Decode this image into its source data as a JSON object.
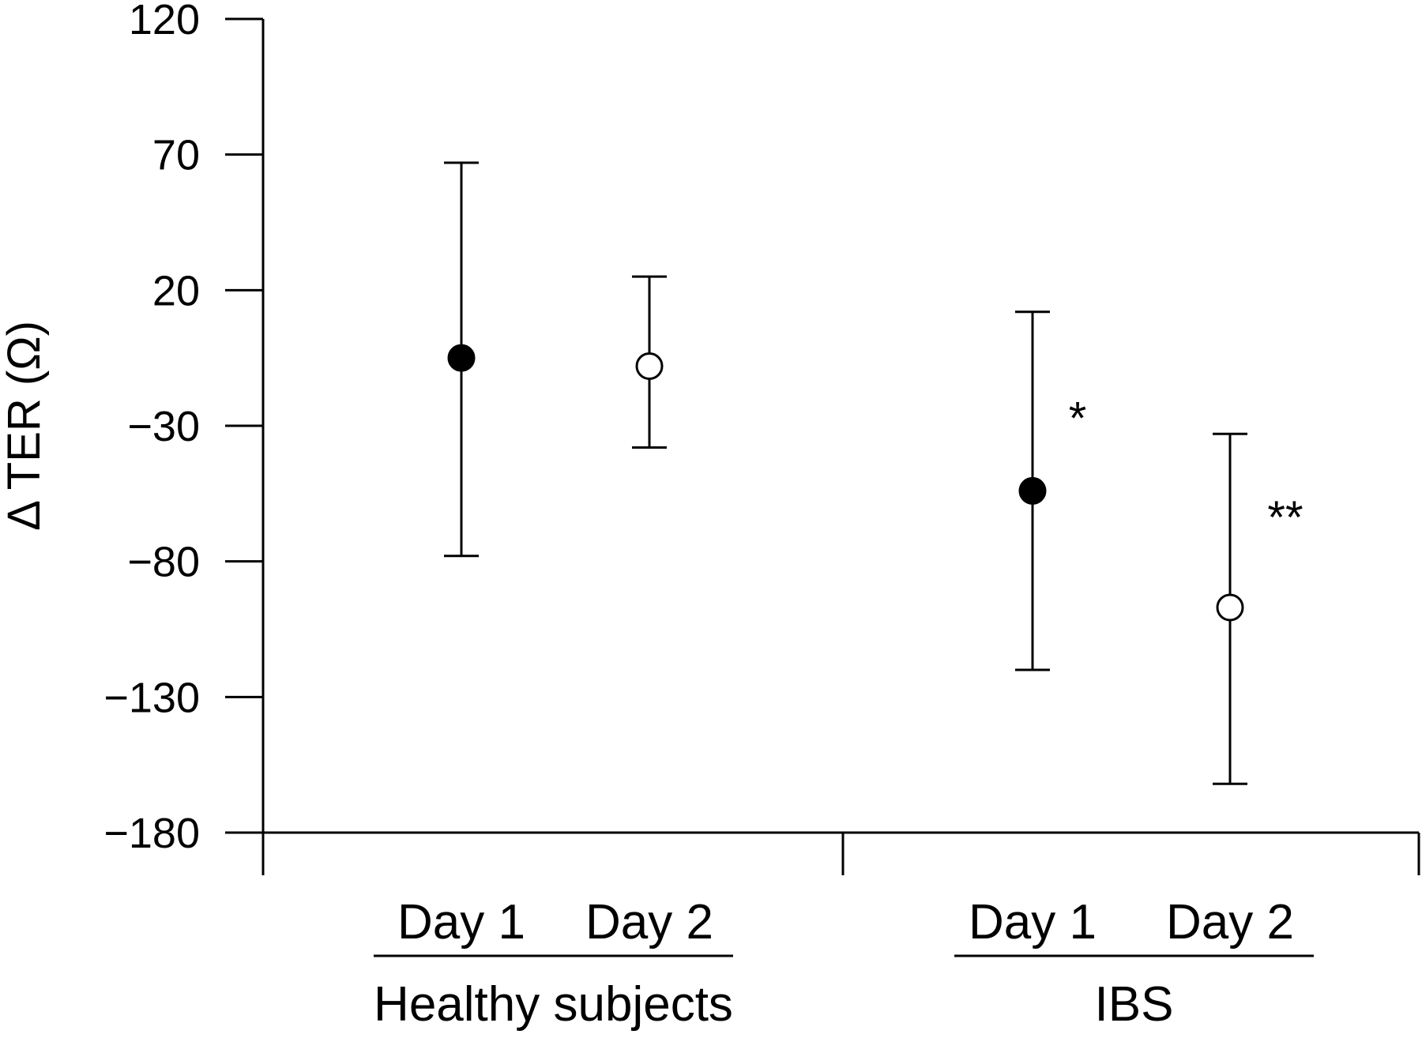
{
  "chart_data": {
    "type": "scatter",
    "ylabel": "Δ TER (Ω)",
    "ylim": [
      -180,
      120
    ],
    "yticks": [
      120,
      70,
      20,
      -30,
      -80,
      -130,
      -180
    ],
    "ytick_labels": [
      "120",
      "70",
      "20",
      "−30",
      "−80",
      "−130",
      "−180"
    ],
    "grid": false,
    "groups": [
      {
        "label": "Healthy subjects",
        "points": [
          {
            "category": "Day 1",
            "marker": "filled",
            "mean": -5,
            "lower": -78,
            "upper": 67,
            "annotation": ""
          },
          {
            "category": "Day 2",
            "marker": "open",
            "mean": -8,
            "lower": -38,
            "upper": 25,
            "annotation": ""
          }
        ]
      },
      {
        "label": "IBS",
        "points": [
          {
            "category": "Day 1",
            "marker": "filled",
            "mean": -54,
            "lower": -120,
            "upper": 12,
            "annotation": "*"
          },
          {
            "category": "Day 2",
            "marker": "open",
            "mean": -97,
            "lower": -162,
            "upper": -33,
            "annotation": "**"
          }
        ]
      }
    ]
  }
}
